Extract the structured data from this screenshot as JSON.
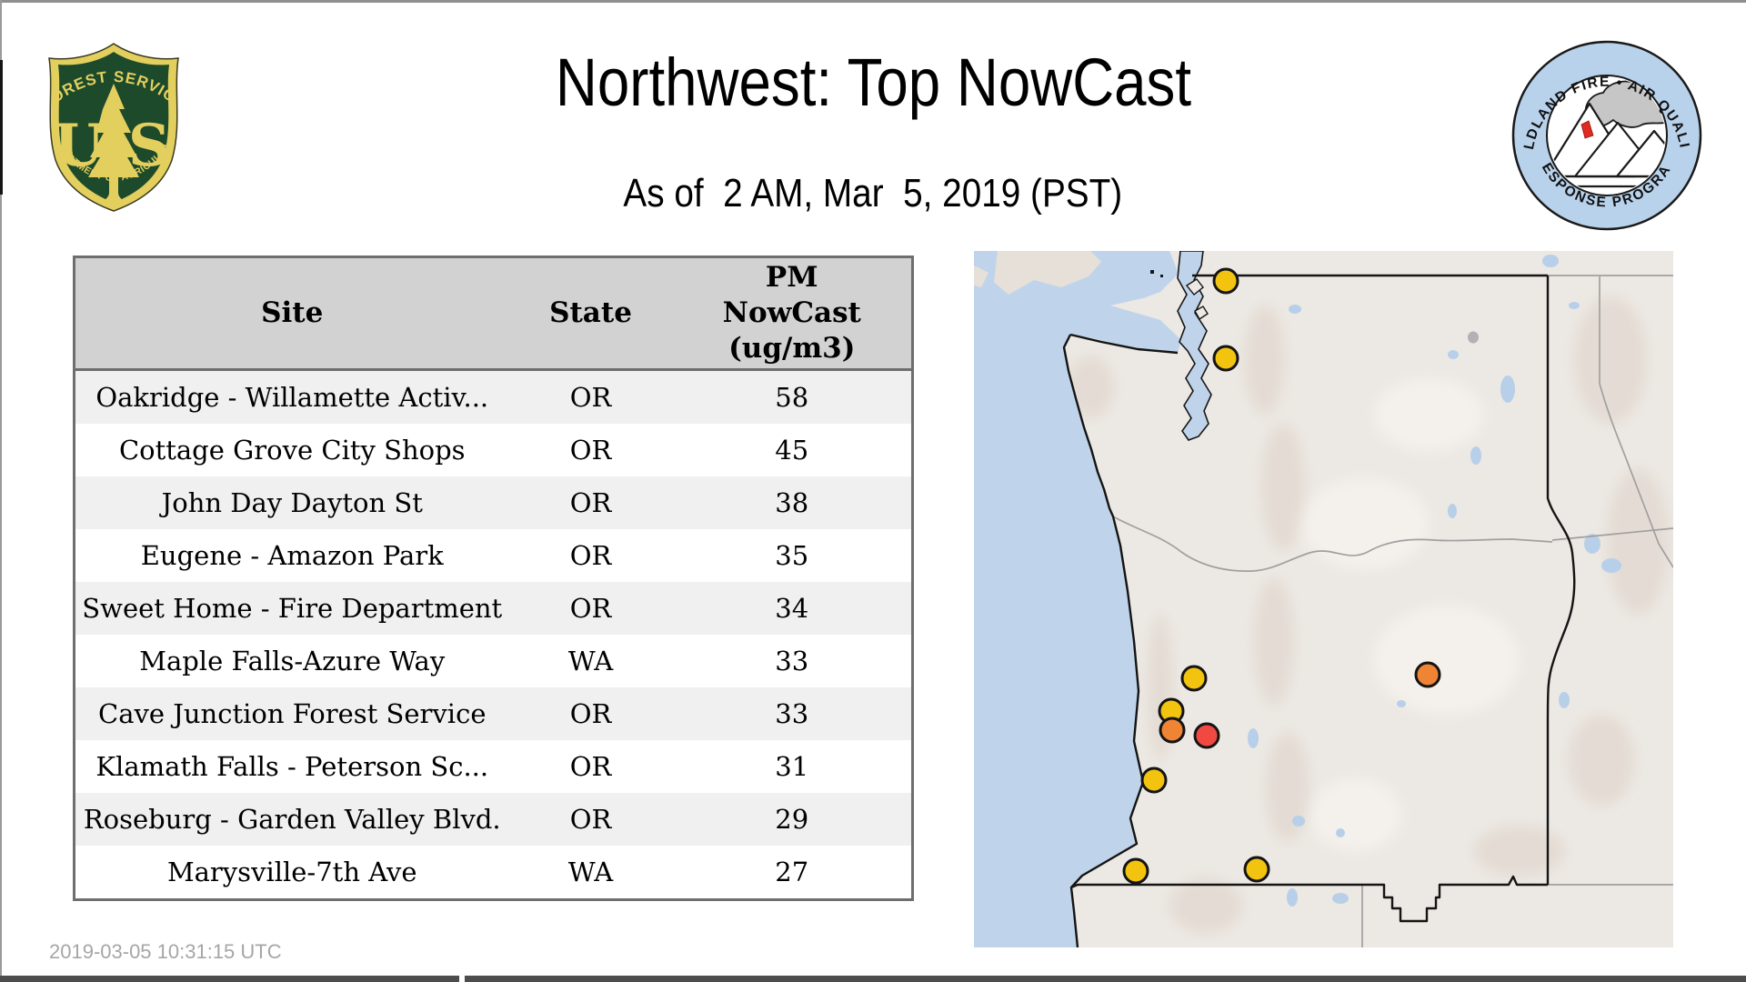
{
  "header": {
    "title": "Northwest: Top NowCast",
    "subtitle": "As of  2 AM, Mar  5, 2019 (PST)",
    "fs_logo": {
      "arc_top": "FOREST SERVICE",
      "letter_u": "U",
      "letter_s": "S",
      "arc_bottom": "DEPARTMENT OF AGRICULTURE"
    },
    "wfaqrp_logo": {
      "arc_top": "WILDLAND FIRE • AIR QUALITY",
      "arc_bottom": "RESPONSE PROGRAM"
    }
  },
  "table": {
    "columns": [
      "Site",
      "State",
      "PM\nNowCast\n(ug/m3)"
    ],
    "rows": [
      {
        "site": "Oakridge - Willamette Activ...",
        "state": "OR",
        "value": "58"
      },
      {
        "site": "Cottage Grove City Shops",
        "state": "OR",
        "value": "45"
      },
      {
        "site": "John Day Dayton St",
        "state": "OR",
        "value": "38"
      },
      {
        "site": "Eugene - Amazon Park",
        "state": "OR",
        "value": "35"
      },
      {
        "site": "Sweet Home - Fire Department",
        "state": "OR",
        "value": "34"
      },
      {
        "site": "Maple Falls-Azure Way",
        "state": "WA",
        "value": "33"
      },
      {
        "site": "Cave Junction Forest Service",
        "state": "OR",
        "value": "33"
      },
      {
        "site": "Klamath Falls - Peterson Sc...",
        "state": "OR",
        "value": "31"
      },
      {
        "site": "Roseburg - Garden Valley Blvd.",
        "state": "OR",
        "value": "29"
      },
      {
        "site": "Marysville-7th Ave",
        "state": "WA",
        "value": "27"
      }
    ]
  },
  "map": {
    "colors": {
      "good": "#2ec066",
      "moderate": "#f1c21b",
      "usg": "#ee8434",
      "unhealthy": "#ef4942",
      "no_data": "#b3b0b6",
      "water": "#bfd4eb",
      "land": "#ece8e3"
    },
    "markers": [
      {
        "site": "Maple Falls-Azure Way",
        "color": "yellow",
        "x": 36.0,
        "y": 4.3
      },
      {
        "site": "Marysville-7th Ave",
        "color": "yellow",
        "x": 36.0,
        "y": 15.4
      },
      {
        "site": "Sweet Home - Fire Department",
        "color": "yellow",
        "x": 31.5,
        "y": 61.4
      },
      {
        "site": "Eugene - Amazon Park",
        "color": "yellow",
        "x": 28.2,
        "y": 66.1
      },
      {
        "site": "Cottage Grove City Shops",
        "color": "orange",
        "x": 28.3,
        "y": 68.8
      },
      {
        "site": "Oakridge - Willamette Activ...",
        "color": "red",
        "x": 33.3,
        "y": 69.6
      },
      {
        "site": "Roseburg - Garden Valley Blvd.",
        "color": "yellow",
        "x": 25.7,
        "y": 76.0
      },
      {
        "site": "Cave Junction Forest Service",
        "color": "yellow",
        "x": 23.1,
        "y": 89.0
      },
      {
        "site": "Klamath Falls - Peterson Sc...",
        "color": "yellow",
        "x": 40.4,
        "y": 88.8
      },
      {
        "site": "John Day Dayton St",
        "color": "orange",
        "x": 64.9,
        "y": 60.8
      }
    ],
    "dots": {
      "green": [
        [
          32.4,
          4.3
        ],
        [
          33.0,
          6.9
        ],
        [
          32.1,
          9.3
        ],
        [
          14.4,
          11.6
        ],
        [
          14.4,
          12.8
        ],
        [
          34.3,
          11.1
        ],
        [
          28.9,
          14.4
        ],
        [
          40.8,
          12.9
        ],
        [
          54.0,
          10.3
        ],
        [
          54.6,
          11.6
        ],
        [
          64.6,
          14.0
        ],
        [
          55.3,
          18.1
        ],
        [
          73.5,
          17.6
        ],
        [
          79.1,
          18.5
        ],
        [
          79.8,
          20.1
        ],
        [
          31.5,
          12.7
        ],
        [
          32.8,
          9.4
        ],
        [
          32.1,
          10.4
        ],
        [
          31.7,
          21.3
        ],
        [
          34.3,
          21.5
        ],
        [
          35.6,
          23.5
        ],
        [
          36.0,
          21.3
        ],
        [
          39.3,
          22.5
        ],
        [
          33.7,
          26.1
        ],
        [
          34.7,
          27.0
        ],
        [
          27.6,
          25.8
        ],
        [
          57.0,
          25.6
        ],
        [
          61.9,
          27.0
        ],
        [
          70.0,
          26.8
        ],
        [
          21.1,
          28.9
        ],
        [
          50.7,
          28.7
        ],
        [
          29.4,
          32.9
        ],
        [
          74.4,
          30.8
        ],
        [
          79.1,
          32.1
        ],
        [
          64.5,
          34.1
        ],
        [
          76.7,
          35.2
        ],
        [
          49.3,
          36.3
        ],
        [
          56.0,
          37.1
        ],
        [
          62.8,
          38.6
        ],
        [
          73.6,
          37.1
        ],
        [
          81.8,
          35.5
        ],
        [
          70.0,
          40.2
        ],
        [
          34.1,
          43.1
        ],
        [
          30.9,
          43.9
        ],
        [
          32.5,
          45.3
        ],
        [
          42.3,
          44.5
        ],
        [
          44.6,
          46.1
        ],
        [
          29.0,
          47.0
        ],
        [
          30.8,
          47.8
        ],
        [
          31.2,
          48.8
        ],
        [
          72.8,
          49.2
        ],
        [
          29.0,
          54.4
        ],
        [
          26.5,
          58.9
        ],
        [
          28.2,
          58.5
        ],
        [
          45.5,
          58.4
        ],
        [
          41.6,
          62.5
        ],
        [
          48.1,
          62.5
        ],
        [
          44.1,
          65.4
        ],
        [
          28.1,
          64.5
        ],
        [
          17.9,
          74.0
        ],
        [
          30.7,
          83.3
        ],
        [
          26.9,
          87.6
        ],
        [
          31.7,
          88.9
        ]
      ],
      "yellow": [
        [
          30.4,
          14.6
        ],
        [
          74.3,
          9.4
        ],
        [
          59.8,
          11.2
        ],
        [
          34.7,
          19.1
        ],
        [
          78.8,
          20.0
        ],
        [
          49.8,
          21.1
        ],
        [
          36.0,
          25.1
        ],
        [
          30.7,
          28.3
        ],
        [
          51.1,
          33.8
        ],
        [
          52.7,
          36.6
        ],
        [
          29.4,
          39.4
        ],
        [
          66.2,
          45.6
        ],
        [
          79.7,
          48.3
        ],
        [
          74.9,
          56.3
        ],
        [
          64.4,
          71.3
        ],
        [
          78.8,
          74.5
        ],
        [
          74.1,
          82.4
        ],
        [
          26.0,
          85.6
        ],
        [
          29.9,
          87.1
        ],
        [
          52.4,
          88.8
        ]
      ],
      "gray": [
        [
          71.4,
          12.4
        ]
      ]
    }
  },
  "footer": {
    "timestamp": "2019-03-05 10:31:15 UTC"
  }
}
